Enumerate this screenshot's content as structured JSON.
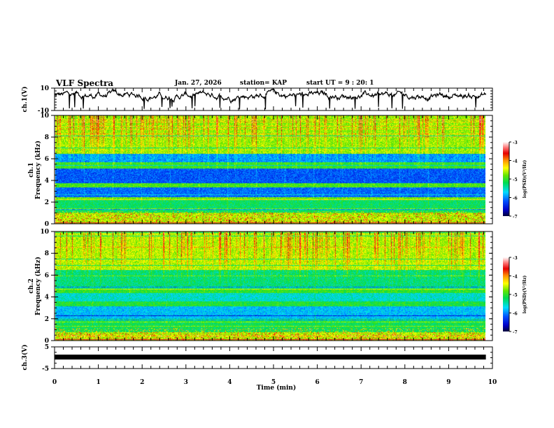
{
  "header": {
    "title": "VLF Spectra",
    "date": "Jan. 27, 2026",
    "station": "station= KAP",
    "start_ut": "start  UT =   9 : 20: 1"
  },
  "chart_data": [
    {
      "type": "line",
      "name": "ch1-waveform",
      "ylabel": "ch.1(V)",
      "ylim": [
        -10,
        10
      ],
      "yticks": [
        "10",
        "-10"
      ],
      "xlim": [
        0,
        10
      ]
    },
    {
      "type": "heatmap",
      "name": "ch1-spectrogram",
      "ylabel_line1": "ch.1",
      "ylabel_line2": "Frequency  (kHz)",
      "ylim": [
        0,
        10
      ],
      "yticks": [
        "0",
        "2",
        "4",
        "6",
        "8",
        "10"
      ],
      "xlim": [
        0,
        9.85
      ],
      "colorbar": {
        "label": "log(PSD)(V²/Hz)",
        "range": [
          -7,
          -3
        ],
        "ticks": [
          "-3",
          "-4",
          "-5",
          "-6",
          "-7"
        ]
      }
    },
    {
      "type": "heatmap",
      "name": "ch2-spectrogram",
      "ylabel_line1": "ch.2",
      "ylabel_line2": "Frequency  (kHz)",
      "ylim": [
        0,
        10
      ],
      "yticks": [
        "0",
        "2",
        "4",
        "6",
        "8",
        "10"
      ],
      "xlim": [
        0,
        9.85
      ],
      "colorbar": {
        "label": "log(PSD)(V²/Hz)",
        "range": [
          -7,
          -3
        ],
        "ticks": [
          "-3",
          "-4",
          "-5",
          "-6",
          "-7"
        ]
      }
    },
    {
      "type": "line",
      "name": "ch3-waveform",
      "ylabel": "ch.3(V)",
      "ylim": [
        -5,
        5
      ],
      "yticks": [
        "5",
        "-5"
      ],
      "level": 0.3,
      "xlim": [
        0,
        10
      ]
    }
  ],
  "xaxis": {
    "label": "Time  (min)",
    "ticks": [
      "0",
      "1",
      "2",
      "3",
      "4",
      "5",
      "6",
      "7",
      "8",
      "9",
      "10"
    ],
    "range": [
      0,
      10
    ]
  },
  "colors": {
    "axis": "#000000",
    "background": "#ffffff"
  }
}
